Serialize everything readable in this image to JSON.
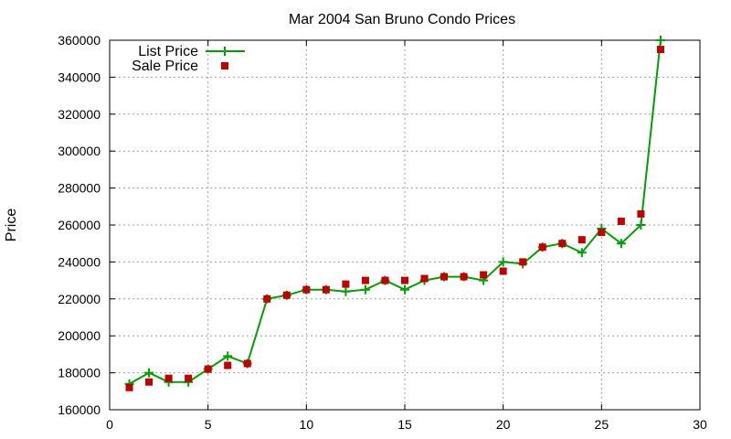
{
  "chart_data": {
    "type": "line",
    "title": "Mar 2004 San Bruno Condo Prices",
    "xlabel": "",
    "ylabel": "Price",
    "xlim": [
      0,
      30
    ],
    "ylim": [
      160000,
      360000
    ],
    "x_ticks": [
      0,
      5,
      10,
      15,
      20,
      25,
      30
    ],
    "y_ticks": [
      160000,
      180000,
      200000,
      220000,
      240000,
      260000,
      280000,
      300000,
      320000,
      340000,
      360000
    ],
    "grid": true,
    "legend_position": "top-left",
    "series": [
      {
        "name": "List Price",
        "style": "lines+points",
        "color": "#00a000",
        "marker": "plus",
        "x": [
          1,
          2,
          3,
          4,
          5,
          6,
          7,
          8,
          9,
          10,
          11,
          12,
          13,
          14,
          15,
          16,
          17,
          18,
          19,
          20,
          21,
          22,
          23,
          24,
          25,
          26,
          27,
          28
        ],
        "values": [
          174000,
          180000,
          175000,
          175000,
          182000,
          189000,
          185000,
          220000,
          222000,
          225000,
          225000,
          224000,
          225000,
          230000,
          225000,
          230000,
          232000,
          232000,
          230000,
          240000,
          239000,
          248000,
          250000,
          245000,
          258000,
          250000,
          260000,
          360000
        ]
      },
      {
        "name": "Sale Price",
        "style": "points",
        "color": "#c00000",
        "marker": "square",
        "x": [
          1,
          2,
          3,
          4,
          5,
          6,
          7,
          8,
          9,
          10,
          11,
          12,
          13,
          14,
          15,
          16,
          17,
          18,
          19,
          20,
          21,
          22,
          23,
          24,
          25,
          26,
          27,
          28
        ],
        "values": [
          172000,
          175000,
          177000,
          177000,
          182000,
          184000,
          185000,
          220000,
          222000,
          225000,
          225000,
          228000,
          230000,
          230000,
          230000,
          231000,
          232000,
          232000,
          233000,
          235000,
          240000,
          248000,
          250000,
          252000,
          256000,
          262000,
          266000,
          355000
        ]
      }
    ]
  }
}
